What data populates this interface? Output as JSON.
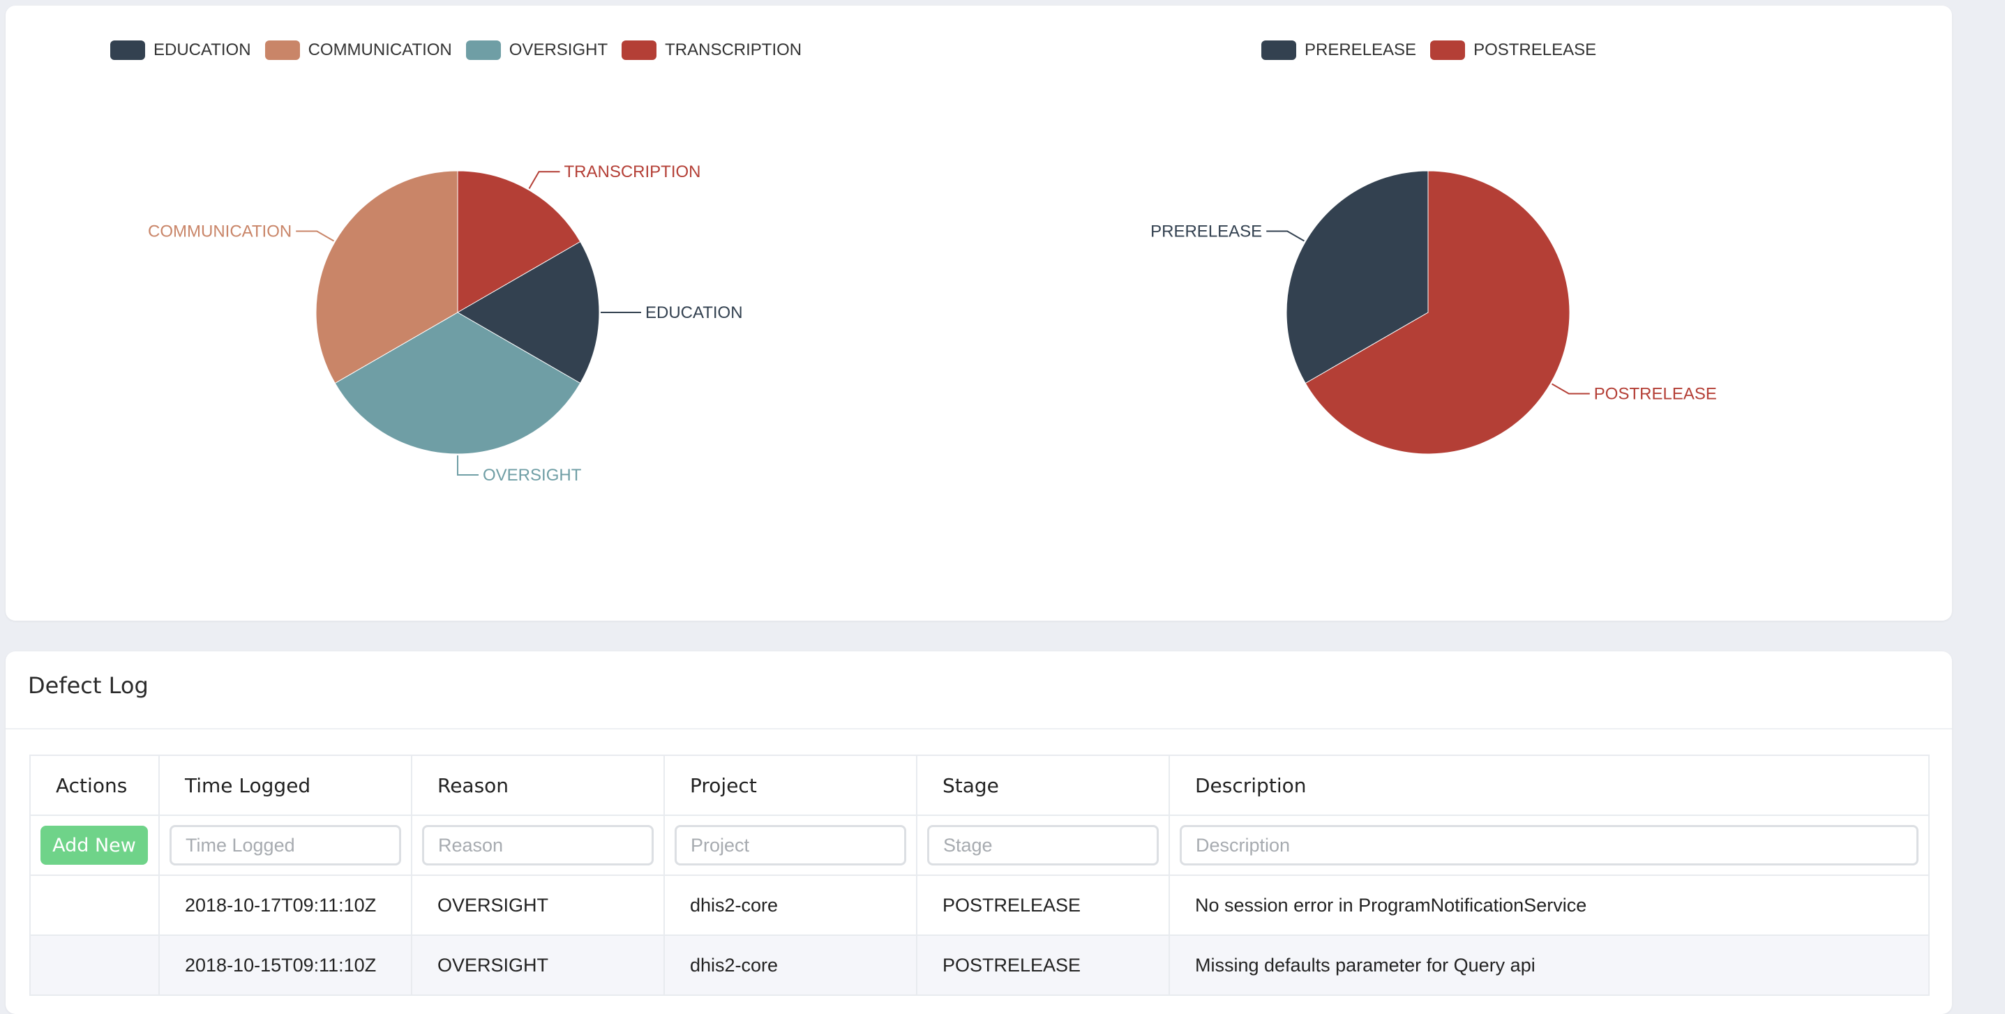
{
  "colors": {
    "education": "#334150",
    "communication": "#c98568",
    "oversight": "#6f9ea5",
    "transcription": "#b43f36",
    "prerelease": "#334150",
    "postrelease": "#b43f36"
  },
  "chart_data": [
    {
      "type": "pie",
      "title": "",
      "legend_position": "top",
      "categories": [
        "EDUCATION",
        "COMMUNICATION",
        "OVERSIGHT",
        "TRANSCRIPTION"
      ],
      "values": [
        1,
        2,
        2,
        1
      ]
    },
    {
      "type": "pie",
      "title": "",
      "legend_position": "top",
      "categories": [
        "PRERELEASE",
        "POSTRELEASE"
      ],
      "values": [
        1,
        2
      ]
    }
  ],
  "defect_log": {
    "title": "Defect Log",
    "columns": [
      "Actions",
      "Time Logged",
      "Reason",
      "Project",
      "Stage",
      "Description"
    ],
    "add_button_label": "Add New",
    "filter_placeholders": {
      "time_logged": "Time Logged",
      "reason": "Reason",
      "project": "Project",
      "stage": "Stage",
      "description": "Description"
    },
    "rows": [
      {
        "time_logged": "2018-10-17T09:11:10Z",
        "reason": "OVERSIGHT",
        "project": "dhis2-core",
        "stage": "POSTRELEASE",
        "description": "No session error in ProgramNotificationService"
      },
      {
        "time_logged": "2018-10-15T09:11:10Z",
        "reason": "OVERSIGHT",
        "project": "dhis2-core",
        "stage": "POSTRELEASE",
        "description": "Missing defaults parameter for Query api"
      }
    ]
  }
}
